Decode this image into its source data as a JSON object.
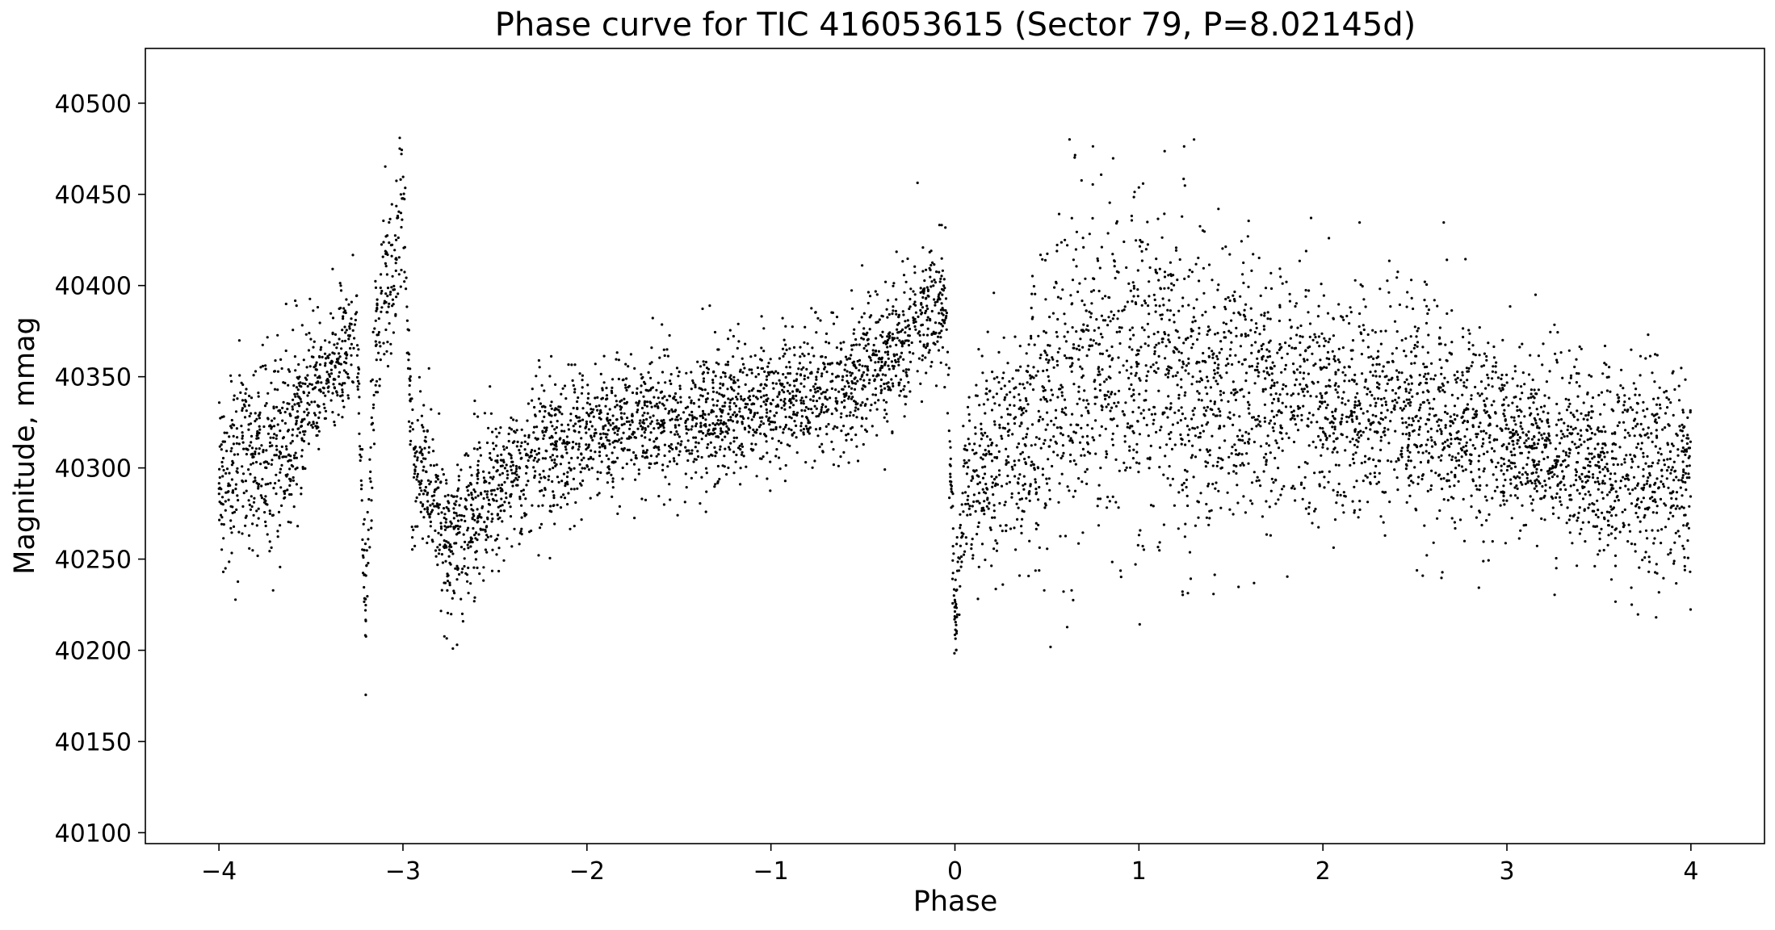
{
  "chart_data": {
    "type": "scatter",
    "title": "Phase curve for TIC 416053615 (Sector 79, P=8.02145d)",
    "xlabel": "Phase",
    "ylabel": "Magnitude, mmag",
    "xlim": [
      -4.4,
      4.4
    ],
    "ylim": [
      40094,
      40530
    ],
    "x_ticks": [
      -4,
      -3,
      -2,
      -1,
      0,
      1,
      2,
      3,
      4
    ],
    "x_tick_labels": [
      "−4",
      "−3",
      "−2",
      "−1",
      "0",
      "1",
      "2",
      "3",
      "4"
    ],
    "y_ticks": [
      40100,
      40150,
      40200,
      40250,
      40300,
      40350,
      40400,
      40450,
      40500
    ],
    "y_tick_labels": [
      "40100",
      "40150",
      "40200",
      "40250",
      "40300",
      "40350",
      "40400",
      "40450",
      "40500"
    ],
    "grid": false,
    "point_color": "#000000",
    "series": [
      {
        "profile": [
          [
            -4.0,
            40295,
            30
          ],
          [
            -3.9,
            40305,
            32
          ],
          [
            -3.8,
            40310,
            32
          ],
          [
            -3.7,
            40300,
            35
          ],
          [
            -3.6,
            40320,
            35
          ],
          [
            -3.5,
            40345,
            22
          ],
          [
            -3.4,
            40355,
            18
          ],
          [
            -3.3,
            40365,
            18
          ],
          [
            -3.25,
            40375,
            20
          ],
          [
            -3.2,
            40210,
            25
          ],
          [
            -3.15,
            40370,
            25
          ],
          [
            -3.1,
            40390,
            25
          ],
          [
            -3.05,
            40410,
            25
          ],
          [
            -3.0,
            40450,
            25
          ],
          [
            -2.95,
            40295,
            25
          ],
          [
            -2.9,
            40300,
            22
          ],
          [
            -2.85,
            40295,
            22
          ],
          [
            -2.75,
            40255,
            25
          ],
          [
            -2.7,
            40265,
            25
          ],
          [
            -2.6,
            40275,
            22
          ],
          [
            -2.5,
            40290,
            22
          ],
          [
            -2.4,
            40300,
            22
          ],
          [
            -2.2,
            40310,
            22
          ],
          [
            -2.0,
            40320,
            22
          ],
          [
            -1.8,
            40325,
            22
          ],
          [
            -1.6,
            40325,
            22
          ],
          [
            -1.4,
            40328,
            22
          ],
          [
            -1.2,
            40330,
            22
          ],
          [
            -1.0,
            40333,
            22
          ],
          [
            -0.8,
            40338,
            22
          ],
          [
            -0.6,
            40345,
            22
          ],
          [
            -0.4,
            40360,
            22
          ],
          [
            -0.2,
            40378,
            22
          ],
          [
            -0.1,
            40388,
            22
          ],
          [
            -0.05,
            40392,
            22
          ],
          [
            0.0,
            40215,
            15
          ],
          [
            0.05,
            40285,
            25
          ],
          [
            0.2,
            40305,
            35
          ],
          [
            0.4,
            40320,
            45
          ],
          [
            0.6,
            40350,
            55
          ],
          [
            0.8,
            40360,
            55
          ],
          [
            1.0,
            40350,
            55
          ],
          [
            1.2,
            40345,
            50
          ],
          [
            1.4,
            40345,
            48
          ],
          [
            1.6,
            40342,
            45
          ],
          [
            1.8,
            40340,
            40
          ],
          [
            2.0,
            40335,
            38
          ],
          [
            2.2,
            40335,
            40
          ],
          [
            2.4,
            40335,
            42
          ],
          [
            2.6,
            40330,
            38
          ],
          [
            2.8,
            40325,
            32
          ],
          [
            3.0,
            40320,
            30
          ],
          [
            3.2,
            40312,
            30
          ],
          [
            3.4,
            40305,
            30
          ],
          [
            3.6,
            40300,
            32
          ],
          [
            3.8,
            40300,
            35
          ],
          [
            4.0,
            40295,
            35
          ]
        ]
      }
    ]
  }
}
